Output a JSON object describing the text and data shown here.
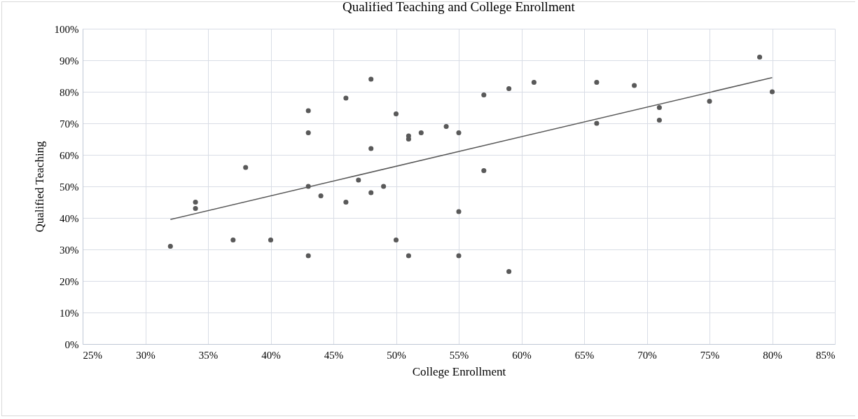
{
  "chart_data": {
    "type": "scatter",
    "title": "Qualified Teaching and College Enrollment",
    "xlabel": "College Enrollment",
    "ylabel": "Qualified Teaching",
    "series": [
      {
        "marker": "circle",
        "color": "#595959",
        "x": [
          32,
          34,
          34,
          37,
          38,
          40,
          43,
          43,
          43,
          43,
          44,
          46,
          46,
          47,
          48,
          48,
          48,
          49,
          50,
          50,
          51,
          51,
          51,
          52,
          54,
          55,
          55,
          55,
          57,
          57,
          59,
          59,
          61,
          66,
          66,
          69,
          71,
          71,
          75,
          79,
          80
        ],
        "values": [
          31,
          45,
          43,
          33,
          56,
          33,
          74,
          67,
          50,
          28,
          47,
          78,
          45,
          52,
          84,
          62,
          48,
          50,
          73,
          33,
          66,
          65,
          28,
          67,
          69,
          67,
          42,
          28,
          79,
          55,
          81,
          23,
          83,
          83,
          70,
          82,
          75,
          71,
          77,
          91,
          80
        ]
      },
      {
        "type": "line",
        "color": "#595959",
        "x": [
          32,
          80
        ],
        "values": [
          39.5,
          84.5
        ]
      }
    ],
    "xlim": [
      25,
      85
    ],
    "xticks": [
      {
        "value": 25,
        "label": "25%"
      },
      {
        "value": 30,
        "label": "30%"
      },
      {
        "value": 35,
        "label": "35%"
      },
      {
        "value": 40,
        "label": "40%"
      },
      {
        "value": 45,
        "label": "45%"
      },
      {
        "value": 50,
        "label": "50%"
      },
      {
        "value": 55,
        "label": "55%"
      },
      {
        "value": 60,
        "label": "60%"
      },
      {
        "value": 65,
        "label": "65%"
      },
      {
        "value": 70,
        "label": "70%"
      },
      {
        "value": 75,
        "label": "75%"
      },
      {
        "value": 80,
        "label": "80%"
      },
      {
        "value": 85,
        "label": "85%"
      }
    ],
    "ylim": [
      0,
      100
    ],
    "yticks": [
      {
        "value": 0,
        "label": "0%"
      },
      {
        "value": 10,
        "label": "10%"
      },
      {
        "value": 20,
        "label": "20%"
      },
      {
        "value": 30,
        "label": "30%"
      },
      {
        "value": 40,
        "label": "40%"
      },
      {
        "value": 50,
        "label": "50%"
      },
      {
        "value": 60,
        "label": "60%"
      },
      {
        "value": 70,
        "label": "70%"
      },
      {
        "value": 80,
        "label": "80%"
      },
      {
        "value": 90,
        "label": "90%"
      },
      {
        "value": 100,
        "label": "100%"
      }
    ],
    "grid": true,
    "line_style": "solid"
  }
}
